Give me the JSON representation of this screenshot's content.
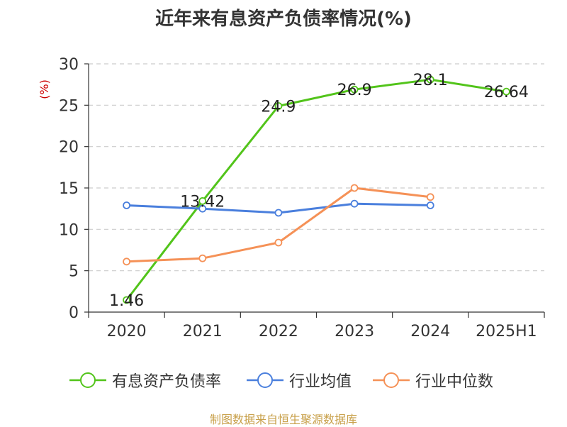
{
  "chart_data": {
    "type": "line",
    "title": "近年来有息资产负债率情况(%)",
    "ylabel": "(%)",
    "xlabel": "",
    "categories": [
      "2020",
      "2021",
      "2022",
      "2023",
      "2024",
      "2025H1"
    ],
    "ylim": [
      0,
      30
    ],
    "yticks": [
      0,
      5,
      10,
      15,
      20,
      25,
      30
    ],
    "grid": true,
    "legend_position": "bottom",
    "series": [
      {
        "name": "有息资产负债率",
        "color": "#52c41a",
        "values": [
          1.46,
          13.42,
          24.9,
          26.9,
          28.1,
          26.64
        ],
        "labels": [
          "1.46",
          "13.42",
          "24.9",
          "26.9",
          "28.1",
          "26.64"
        ]
      },
      {
        "name": "行业均值",
        "color": "#4a7fdd",
        "values": [
          12.9,
          12.5,
          12.0,
          13.1,
          12.9,
          null
        ]
      },
      {
        "name": "行业中位数",
        "color": "#f59157",
        "values": [
          6.1,
          6.5,
          8.4,
          15.0,
          13.9,
          null
        ]
      }
    ]
  },
  "source": "制图数据来自恒生聚源数据库",
  "colors": {
    "grid": "#cccccc",
    "axis": "#333333",
    "ylabel": "#cc0000"
  }
}
